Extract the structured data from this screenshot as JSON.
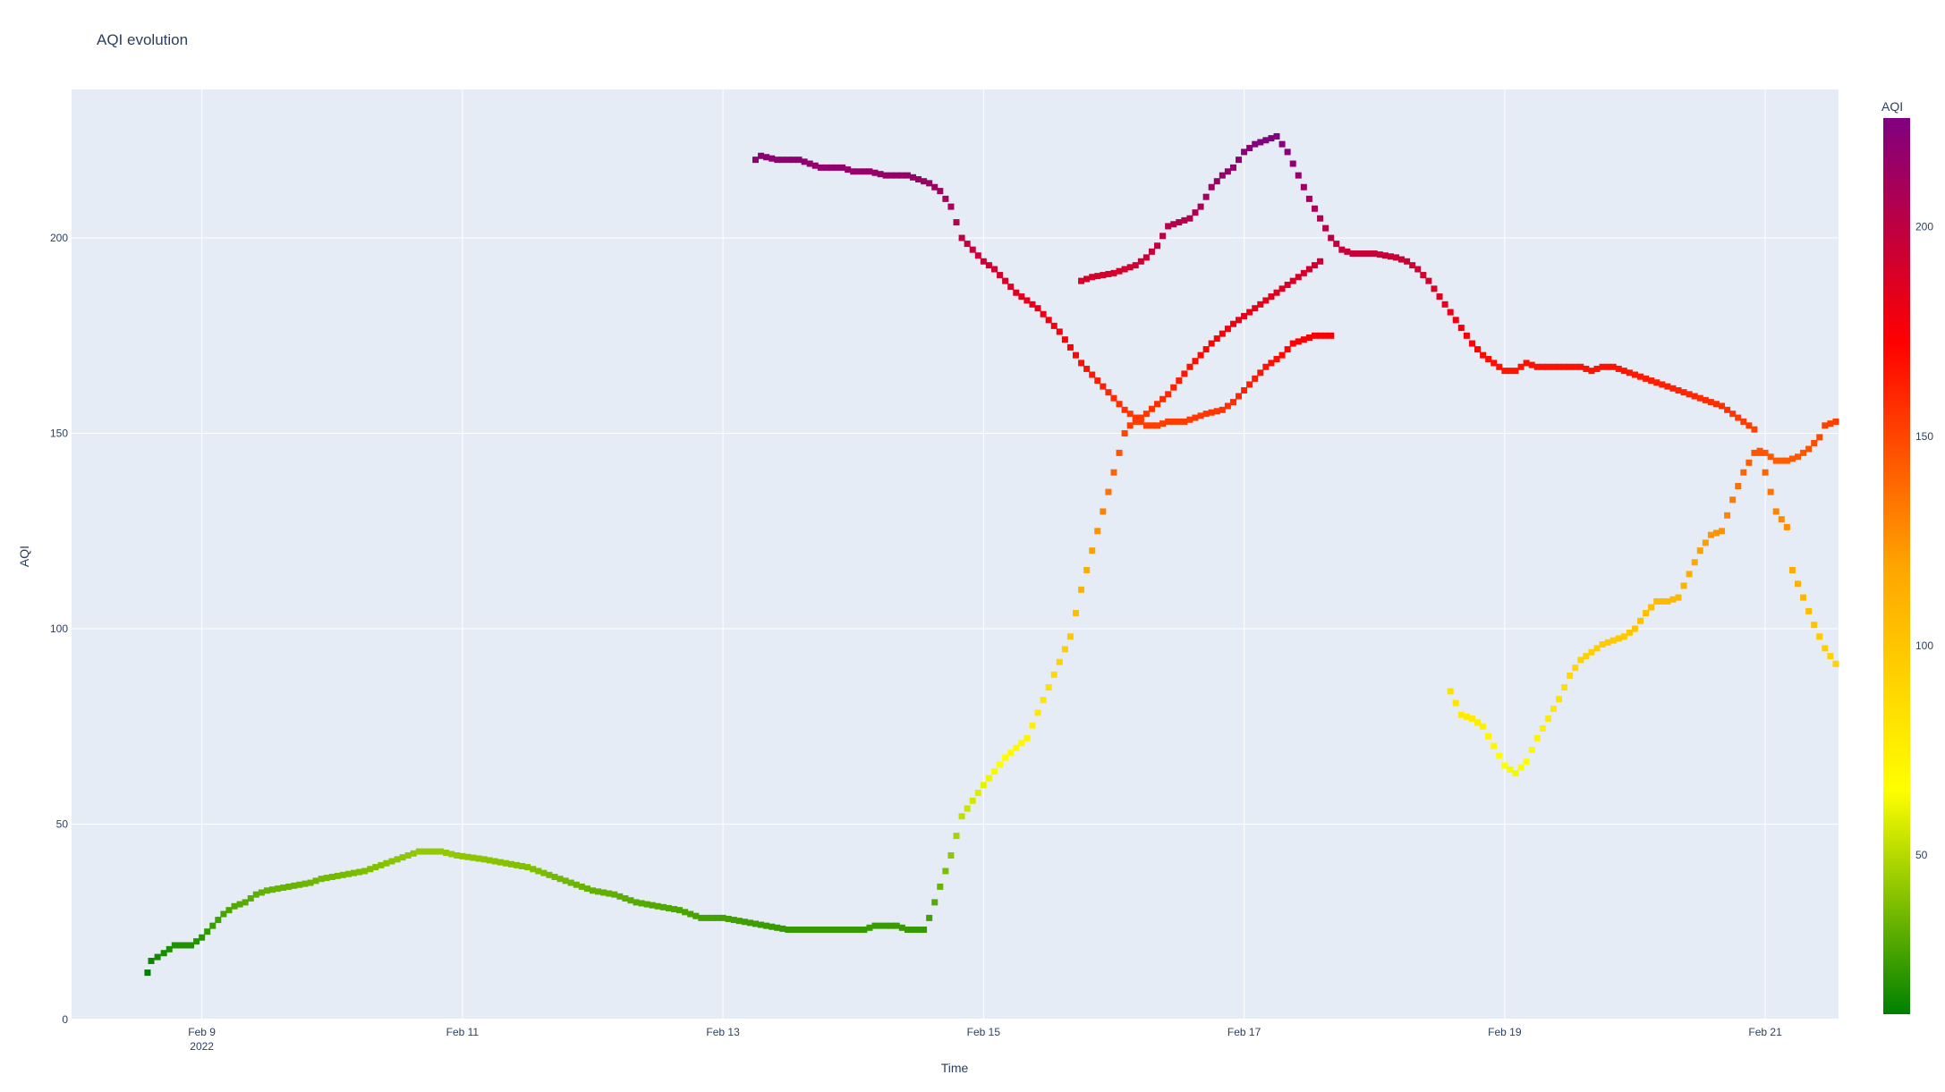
{
  "chart_data": {
    "type": "scatter",
    "title": "AQI evolution",
    "xlabel": "Time",
    "ylabel": "AQI",
    "x_ticks": [
      {
        "date": "2022-02-09",
        "label": "Feb 9",
        "sublabel": "2022"
      },
      {
        "date": "2022-02-11",
        "label": "Feb 11",
        "sublabel": ""
      },
      {
        "date": "2022-02-13",
        "label": "Feb 13",
        "sublabel": ""
      },
      {
        "date": "2022-02-15",
        "label": "Feb 15",
        "sublabel": ""
      },
      {
        "date": "2022-02-17",
        "label": "Feb 17",
        "sublabel": ""
      },
      {
        "date": "2022-02-19",
        "label": "Feb 19",
        "sublabel": ""
      },
      {
        "date": "2022-02-21",
        "label": "Feb 21",
        "sublabel": ""
      }
    ],
    "y_ticks": [
      0,
      50,
      100,
      150,
      200
    ],
    "xlim": [
      "2022-02-08 00:00",
      "2022-02-21 13:30"
    ],
    "ylim": [
      0,
      238
    ],
    "grid": true,
    "colorbar": {
      "title": "AQI",
      "range": [
        12,
        226
      ],
      "ticks": [
        50,
        100,
        150,
        200
      ],
      "colorscale": [
        [
          0.0,
          "#008000"
        ],
        [
          0.25,
          "#ffff00"
        ],
        [
          0.5,
          "#ffa500"
        ],
        [
          0.75,
          "#ff0000"
        ],
        [
          1.0,
          "#800080"
        ]
      ]
    },
    "marker": {
      "symbol": "square"
    },
    "colors": {
      "plot_bg": "#e5ecf6",
      "grid": "#ffffff",
      "text": "#2a3f5f"
    },
    "series": [
      {
        "points": [
          [
            "2022-02-08 14:00",
            12
          ],
          [
            "2022-02-08 14:40",
            15
          ],
          [
            "2022-02-08 17:00",
            17
          ],
          [
            "2022-02-08 19:00",
            19
          ],
          [
            "2022-02-08 22:00",
            19
          ],
          [
            "2022-02-09 00:00",
            21
          ],
          [
            "2022-02-09 02:00",
            24
          ],
          [
            "2022-02-09 04:00",
            27
          ],
          [
            "2022-02-09 06:00",
            29
          ],
          [
            "2022-02-09 08:00",
            30
          ],
          [
            "2022-02-09 10:00",
            32
          ],
          [
            "2022-02-09 12:00",
            33
          ],
          [
            "2022-02-09 16:00",
            34
          ],
          [
            "2022-02-09 20:00",
            35
          ],
          [
            "2022-02-09 22:00",
            36
          ],
          [
            "2022-02-10 02:00",
            37
          ],
          [
            "2022-02-10 06:00",
            38
          ],
          [
            "2022-02-10 10:00",
            40
          ],
          [
            "2022-02-10 14:00",
            42
          ],
          [
            "2022-02-10 16:00",
            43
          ],
          [
            "2022-02-10 20:00",
            43
          ],
          [
            "2022-02-10 23:00",
            42
          ],
          [
            "2022-02-11 04:00",
            41
          ],
          [
            "2022-02-11 08:00",
            40
          ],
          [
            "2022-02-11 12:00",
            39
          ],
          [
            "2022-02-11 16:00",
            37
          ],
          [
            "2022-02-11 20:00",
            35
          ],
          [
            "2022-02-12 00:00",
            33
          ],
          [
            "2022-02-12 04:00",
            32
          ],
          [
            "2022-02-12 08:00",
            30
          ],
          [
            "2022-02-12 12:00",
            29
          ],
          [
            "2022-02-12 16:00",
            28
          ],
          [
            "2022-02-12 20:00",
            26
          ],
          [
            "2022-02-13 00:00",
            26
          ],
          [
            "2022-02-13 04:00",
            25
          ],
          [
            "2022-02-13 08:00",
            24
          ],
          [
            "2022-02-13 12:00",
            23
          ],
          [
            "2022-02-13 20:00",
            23
          ],
          [
            "2022-02-14 02:00",
            23
          ],
          [
            "2022-02-14 04:00",
            24
          ],
          [
            "2022-02-14 08:00",
            24
          ],
          [
            "2022-02-14 10:00",
            23
          ],
          [
            "2022-02-14 13:00",
            23
          ],
          [
            "2022-02-14 14:00",
            26
          ],
          [
            "2022-02-14 16:00",
            34
          ],
          [
            "2022-02-14 18:00",
            42
          ],
          [
            "2022-02-14 20:00",
            52
          ],
          [
            "2022-02-15 00:00",
            60
          ],
          [
            "2022-02-15 04:00",
            67
          ],
          [
            "2022-02-15 08:00",
            72
          ],
          [
            "2022-02-15 12:00",
            85
          ],
          [
            "2022-02-15 16:00",
            98
          ],
          [
            "2022-02-15 18:00",
            110
          ],
          [
            "2022-02-15 20:00",
            120
          ],
          [
            "2022-02-15 22:00",
            130
          ],
          [
            "2022-02-16 00:00",
            140
          ],
          [
            "2022-02-16 02:00",
            150
          ],
          [
            "2022-02-16 03:00",
            152
          ],
          [
            "2022-02-16 06:00",
            155
          ],
          [
            "2022-02-16 10:00",
            160
          ],
          [
            "2022-02-16 14:00",
            167
          ],
          [
            "2022-02-16 18:00",
            173
          ],
          [
            "2022-02-16 22:00",
            178
          ],
          [
            "2022-02-17 02:00",
            182
          ],
          [
            "2022-02-17 06:00",
            186
          ],
          [
            "2022-02-17 10:00",
            190
          ],
          [
            "2022-02-17 14:00",
            194
          ]
        ]
      },
      {
        "points": [
          [
            "2022-02-13 06:00",
            220
          ],
          [
            "2022-02-13 07:00",
            221
          ],
          [
            "2022-02-13 10:00",
            220
          ],
          [
            "2022-02-13 14:00",
            220
          ],
          [
            "2022-02-13 16:00",
            219
          ],
          [
            "2022-02-13 18:00",
            218
          ],
          [
            "2022-02-13 22:00",
            218
          ],
          [
            "2022-02-14 00:00",
            217
          ],
          [
            "2022-02-14 03:00",
            217
          ],
          [
            "2022-02-14 06:00",
            216
          ],
          [
            "2022-02-14 10:00",
            216
          ],
          [
            "2022-02-14 12:00",
            215
          ],
          [
            "2022-02-14 14:00",
            214
          ],
          [
            "2022-02-14 16:00",
            212
          ],
          [
            "2022-02-14 18:00",
            208
          ],
          [
            "2022-02-14 20:00",
            200
          ],
          [
            "2022-02-14 22:00",
            197
          ],
          [
            "2022-02-15 00:00",
            194
          ],
          [
            "2022-02-15 02:00",
            192
          ],
          [
            "2022-02-15 04:00",
            189
          ],
          [
            "2022-02-15 06:00",
            186
          ],
          [
            "2022-02-15 08:00",
            184
          ],
          [
            "2022-02-15 10:00",
            182
          ],
          [
            "2022-02-15 12:00",
            179
          ],
          [
            "2022-02-15 14:00",
            176
          ],
          [
            "2022-02-15 16:00",
            172
          ],
          [
            "2022-02-15 18:00",
            168
          ],
          [
            "2022-02-15 20:00",
            165
          ],
          [
            "2022-02-15 22:00",
            162
          ],
          [
            "2022-02-16 00:00",
            159
          ],
          [
            "2022-02-16 02:00",
            156
          ],
          [
            "2022-02-16 04:00",
            154
          ],
          [
            "2022-02-16 06:00",
            152
          ],
          [
            "2022-02-16 08:00",
            152
          ],
          [
            "2022-02-16 10:00",
            153
          ],
          [
            "2022-02-16 13:00",
            153
          ],
          [
            "2022-02-16 15:00",
            154
          ],
          [
            "2022-02-16 17:00",
            155
          ],
          [
            "2022-02-16 20:00",
            156
          ],
          [
            "2022-02-16 22:00",
            158
          ],
          [
            "2022-02-17 00:00",
            161
          ],
          [
            "2022-02-17 02:00",
            164
          ],
          [
            "2022-02-17 04:00",
            167
          ],
          [
            "2022-02-17 07:00",
            170
          ],
          [
            "2022-02-17 09:00",
            173
          ],
          [
            "2022-02-17 11:00",
            174
          ],
          [
            "2022-02-17 13:00",
            175
          ],
          [
            "2022-02-17 16:00",
            175
          ]
        ]
      },
      {
        "points": [
          [
            "2022-02-15 18:00",
            189
          ],
          [
            "2022-02-15 20:00",
            190
          ],
          [
            "2022-02-16 00:00",
            191
          ],
          [
            "2022-02-16 02:00",
            192
          ],
          [
            "2022-02-16 04:00",
            193
          ],
          [
            "2022-02-16 06:00",
            195
          ],
          [
            "2022-02-16 08:00",
            198
          ],
          [
            "2022-02-16 10:00",
            203
          ],
          [
            "2022-02-16 12:00",
            204
          ],
          [
            "2022-02-16 14:00",
            205
          ],
          [
            "2022-02-16 16:00",
            208
          ],
          [
            "2022-02-16 18:00",
            213
          ],
          [
            "2022-02-16 20:00",
            216
          ],
          [
            "2022-02-16 22:00",
            218
          ],
          [
            "2022-02-17 00:00",
            222
          ],
          [
            "2022-02-17 02:00",
            224
          ],
          [
            "2022-02-17 04:00",
            225
          ],
          [
            "2022-02-17 06:00",
            226
          ],
          [
            "2022-02-17 08:00",
            222
          ],
          [
            "2022-02-17 10:00",
            216
          ],
          [
            "2022-02-17 12:00",
            210
          ],
          [
            "2022-02-17 14:00",
            205
          ],
          [
            "2022-02-17 16:00",
            200
          ],
          [
            "2022-02-17 18:00",
            197
          ],
          [
            "2022-02-17 20:00",
            196
          ],
          [
            "2022-02-18 00:00",
            196
          ],
          [
            "2022-02-18 04:00",
            195
          ],
          [
            "2022-02-18 06:00",
            194
          ],
          [
            "2022-02-18 08:00",
            192
          ],
          [
            "2022-02-18 10:00",
            189
          ],
          [
            "2022-02-18 12:00",
            185
          ],
          [
            "2022-02-18 14:00",
            181
          ],
          [
            "2022-02-18 16:00",
            177
          ],
          [
            "2022-02-18 18:00",
            173
          ],
          [
            "2022-02-18 20:00",
            170
          ],
          [
            "2022-02-18 22:00",
            168
          ],
          [
            "2022-02-19 00:00",
            166
          ],
          [
            "2022-02-19 02:00",
            166
          ],
          [
            "2022-02-19 04:00",
            168
          ],
          [
            "2022-02-19 06:00",
            167
          ],
          [
            "2022-02-19 10:00",
            167
          ],
          [
            "2022-02-19 14:00",
            167
          ],
          [
            "2022-02-19 16:00",
            166
          ],
          [
            "2022-02-19 18:00",
            167
          ],
          [
            "2022-02-19 20:00",
            167
          ],
          [
            "2022-02-19 22:00",
            166
          ],
          [
            "2022-02-20 00:00",
            165
          ],
          [
            "2022-02-20 02:00",
            164
          ],
          [
            "2022-02-20 04:00",
            163
          ],
          [
            "2022-02-20 06:00",
            162
          ],
          [
            "2022-02-20 08:00",
            161
          ],
          [
            "2022-02-20 10:00",
            160
          ],
          [
            "2022-02-20 12:00",
            159
          ],
          [
            "2022-02-20 14:00",
            158
          ],
          [
            "2022-02-20 16:00",
            157
          ],
          [
            "2022-02-20 18:00",
            155
          ],
          [
            "2022-02-20 20:00",
            153
          ],
          [
            "2022-02-20 22:00",
            151
          ],
          [
            "2022-02-21 00:00",
            140
          ],
          [
            "2022-02-21 02:00",
            130
          ],
          [
            "2022-02-21 04:00",
            126
          ],
          [
            "2022-02-21 05:00",
            115
          ],
          [
            "2022-02-21 07:00",
            108
          ],
          [
            "2022-02-21 09:00",
            101
          ],
          [
            "2022-02-21 11:00",
            95
          ],
          [
            "2022-02-21 13:00",
            91
          ]
        ]
      },
      {
        "points": [
          [
            "2022-02-18 14:00",
            84
          ],
          [
            "2022-02-18 16:00",
            78
          ],
          [
            "2022-02-18 18:00",
            77
          ],
          [
            "2022-02-18 20:00",
            75
          ],
          [
            "2022-02-18 22:00",
            70
          ],
          [
            "2022-02-19 00:00",
            65
          ],
          [
            "2022-02-19 02:00",
            63
          ],
          [
            "2022-02-19 04:00",
            66
          ],
          [
            "2022-02-19 06:00",
            72
          ],
          [
            "2022-02-19 08:00",
            77
          ],
          [
            "2022-02-19 10:00",
            82
          ],
          [
            "2022-02-19 12:00",
            88
          ],
          [
            "2022-02-19 14:00",
            92
          ],
          [
            "2022-02-19 16:00",
            94
          ],
          [
            "2022-02-19 18:00",
            96
          ],
          [
            "2022-02-19 20:00",
            97
          ],
          [
            "2022-02-19 22:00",
            98
          ],
          [
            "2022-02-20 00:00",
            100
          ],
          [
            "2022-02-20 02:00",
            104
          ],
          [
            "2022-02-20 04:00",
            107
          ],
          [
            "2022-02-20 06:00",
            107
          ],
          [
            "2022-02-20 08:00",
            108
          ],
          [
            "2022-02-20 10:00",
            114
          ],
          [
            "2022-02-20 12:00",
            120
          ],
          [
            "2022-02-20 14:00",
            124
          ],
          [
            "2022-02-20 16:00",
            125
          ],
          [
            "2022-02-20 18:00",
            133
          ],
          [
            "2022-02-20 20:00",
            140
          ],
          [
            "2022-02-20 22:00",
            145
          ],
          [
            "2022-02-21 00:00",
            145
          ],
          [
            "2022-02-21 02:00",
            143
          ],
          [
            "2022-02-21 04:00",
            143
          ],
          [
            "2022-02-21 06:00",
            144
          ],
          [
            "2022-02-21 08:00",
            146
          ],
          [
            "2022-02-21 10:00",
            149
          ],
          [
            "2022-02-21 11:00",
            152
          ],
          [
            "2022-02-21 13:00",
            153
          ]
        ]
      }
    ]
  }
}
